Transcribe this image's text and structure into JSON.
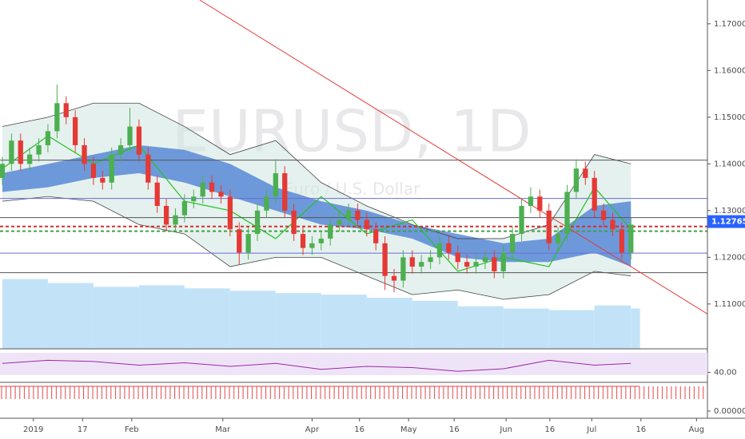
{
  "chart_data": {
    "type": "candlestick",
    "watermark": "EURUSD, 1D",
    "subtitle": "Euro / U.S. Dollar",
    "xlim": [
      -0.26,
      77.4
    ],
    "ylim": [
      1.1004,
      1.1751
    ],
    "xticks": [
      {
        "value": 3.4,
        "label": "2019"
      },
      {
        "value": 8.8,
        "label": "17"
      },
      {
        "value": 14.2,
        "label": "Feb"
      },
      {
        "value": 24.2,
        "label": "Mar"
      },
      {
        "value": 34.0,
        "label": "Apr"
      },
      {
        "value": 39.2,
        "label": "16"
      },
      {
        "value": 44.6,
        "label": "May"
      },
      {
        "value": 49.6,
        "label": "16"
      },
      {
        "value": 55.3,
        "label": "Jun"
      },
      {
        "value": 60.1,
        "label": "16"
      },
      {
        "value": 64.7,
        "label": "Jul"
      },
      {
        "value": 70.1,
        "label": "16"
      },
      {
        "value": 76.2,
        "label": "Aug"
      }
    ],
    "yticks": [
      {
        "value": 1.17,
        "label": "1.17000"
      },
      {
        "value": 1.16,
        "label": "1.16000"
      },
      {
        "value": 1.15,
        "label": "1.15000"
      },
      {
        "value": 1.14,
        "label": "1.14000"
      },
      {
        "value": 1.13,
        "label": "1.13000"
      },
      {
        "value": 1.12,
        "label": "1.12000"
      },
      {
        "value": 1.11,
        "label": "1.11000"
      }
    ],
    "up_color": "#4caf50",
    "down_color": "#e53935",
    "open": [
      1.137,
      1.14,
      1.145,
      1.14,
      1.142,
      1.144,
      1.147,
      1.153,
      1.15,
      1.144,
      1.14,
      1.137,
      1.136,
      1.142,
      1.144,
      1.148,
      1.142,
      1.136,
      1.131,
      1.127,
      1.129,
      1.132,
      1.133,
      1.136,
      1.134,
      1.133,
      1.126,
      1.121,
      1.125,
      1.13,
      1.133,
      1.138,
      1.13,
      1.125,
      1.122,
      1.123,
      1.124,
      1.127,
      1.128,
      1.13,
      1.128,
      1.126,
      1.123,
      1.116,
      1.115,
      1.12,
      1.118,
      1.119,
      1.12,
      1.123,
      1.121,
      1.119,
      1.118,
      1.119,
      1.12,
      1.117,
      1.121,
      1.125,
      1.131,
      1.133,
      1.13,
      1.123,
      1.125,
      1.134,
      1.139,
      1.137,
      1.13,
      1.128,
      1.126,
      1.121
    ],
    "high": [
      1.1415,
      1.1465,
      1.1465,
      1.1435,
      1.1455,
      1.1485,
      1.157,
      1.1545,
      1.1515,
      1.1455,
      1.1415,
      1.1385,
      1.1435,
      1.1455,
      1.152,
      1.1495,
      1.1435,
      1.1375,
      1.1325,
      1.1305,
      1.1335,
      1.1345,
      1.1375,
      1.1375,
      1.1355,
      1.1345,
      1.1275,
      1.1265,
      1.1315,
      1.1345,
      1.141,
      1.1395,
      1.1315,
      1.1265,
      1.1245,
      1.1255,
      1.1285,
      1.1295,
      1.1315,
      1.1315,
      1.1295,
      1.1275,
      1.1245,
      1.1175,
      1.1215,
      1.1215,
      1.1205,
      1.1215,
      1.1245,
      1.1245,
      1.1225,
      1.1205,
      1.1205,
      1.1215,
      1.1215,
      1.1225,
      1.1265,
      1.1325,
      1.135,
      1.1345,
      1.1315,
      1.1265,
      1.1355,
      1.141,
      1.1405,
      1.1385,
      1.1315,
      1.1295,
      1.1275,
      1.1285
    ],
    "low": [
      1.1355,
      1.1385,
      1.1385,
      1.1385,
      1.1405,
      1.1425,
      1.1455,
      1.1485,
      1.1425,
      1.1385,
      1.1355,
      1.1345,
      1.1345,
      1.1405,
      1.1425,
      1.1405,
      1.1345,
      1.1295,
      1.1255,
      1.1255,
      1.1275,
      1.1305,
      1.1315,
      1.1325,
      1.1315,
      1.1245,
      1.1185,
      1.1195,
      1.1235,
      1.1285,
      1.1315,
      1.1285,
      1.1235,
      1.1205,
      1.1205,
      1.1215,
      1.1225,
      1.1255,
      1.1265,
      1.1265,
      1.1245,
      1.1215,
      1.113,
      1.1125,
      1.1135,
      1.1165,
      1.1165,
      1.1175,
      1.1185,
      1.1195,
      1.1175,
      1.1165,
      1.1165,
      1.1175,
      1.1155,
      1.1155,
      1.1195,
      1.1235,
      1.1295,
      1.1285,
      1.1215,
      1.1215,
      1.1235,
      1.1325,
      1.1355,
      1.1285,
      1.1265,
      1.1245,
      1.1195,
      1.1195
    ],
    "close": [
      1.14,
      1.145,
      1.14,
      1.142,
      1.144,
      1.147,
      1.153,
      1.15,
      1.144,
      1.14,
      1.137,
      1.136,
      1.142,
      1.144,
      1.148,
      1.142,
      1.136,
      1.131,
      1.127,
      1.129,
      1.132,
      1.133,
      1.136,
      1.134,
      1.133,
      1.126,
      1.121,
      1.125,
      1.13,
      1.133,
      1.138,
      1.13,
      1.125,
      1.122,
      1.123,
      1.124,
      1.127,
      1.128,
      1.13,
      1.128,
      1.126,
      1.123,
      1.116,
      1.115,
      1.12,
      1.118,
      1.119,
      1.12,
      1.123,
      1.121,
      1.119,
      1.118,
      1.119,
      1.12,
      1.117,
      1.121,
      1.125,
      1.131,
      1.133,
      1.13,
      1.123,
      1.125,
      1.134,
      1.139,
      1.137,
      1.13,
      1.128,
      1.126,
      1.121,
      1.127
    ],
    "bands": {
      "x": [
        0,
        5,
        10,
        15,
        20,
        25,
        30,
        35,
        40,
        45,
        50,
        55,
        60,
        65,
        69
      ],
      "bb_upper": [
        1.148,
        1.15,
        1.153,
        1.153,
        1.148,
        1.142,
        1.145,
        1.136,
        1.131,
        1.127,
        1.124,
        1.124,
        1.127,
        1.142,
        1.14
      ],
      "bb_lower": [
        1.132,
        1.133,
        1.132,
        1.127,
        1.125,
        1.118,
        1.12,
        1.12,
        1.116,
        1.112,
        1.113,
        1.111,
        1.112,
        1.117,
        1.116
      ],
      "cloud_upper": [
        1.138,
        1.14,
        1.142,
        1.144,
        1.143,
        1.14,
        1.135,
        1.132,
        1.13,
        1.127,
        1.125,
        1.123,
        1.124,
        1.131,
        1.132
      ],
      "cloud_lower": [
        1.134,
        1.135,
        1.137,
        1.138,
        1.136,
        1.133,
        1.13,
        1.127,
        1.126,
        1.124,
        1.12,
        1.119,
        1.119,
        1.121,
        1.118
      ],
      "ma_fast": [
        1.139,
        1.146,
        1.14,
        1.144,
        1.132,
        1.13,
        1.124,
        1.133,
        1.125,
        1.128,
        1.117,
        1.12,
        1.118,
        1.135,
        1.126
      ],
      "volume": [
        90,
        85,
        80,
        82,
        78,
        75,
        72,
        70,
        66,
        62,
        55,
        52,
        50,
        56,
        52
      ],
      "rsi": [
        55,
        60,
        58,
        52,
        56,
        50,
        55,
        45,
        50,
        48,
        42,
        46,
        60,
        52,
        55
      ]
    },
    "volume_max": 100,
    "rsi_ylim": [
      25,
      75
    ],
    "rsi_yticks": [
      {
        "value": 40,
        "label": "40.00"
      }
    ],
    "osc_yticks": [
      {
        "value": 0,
        "label": "0.00000"
      }
    ],
    "levels": [
      {
        "value": 1.1408,
        "color": "#555555"
      },
      {
        "value": 1.1326,
        "color": "#6b6bd6"
      },
      {
        "value": 1.1285,
        "color": "#555555"
      },
      {
        "value": 1.1266,
        "color": "#d32f2f",
        "dashed": true
      },
      {
        "value": 1.1256,
        "color": "#43a047",
        "dashed": true
      },
      {
        "value": 1.1209,
        "color": "#6b6bd6"
      },
      {
        "value": 1.1167,
        "color": "#555555"
      }
    ],
    "trendline": {
      "x": [
        21.67,
        77.37
      ],
      "y": [
        1.1751,
        1.1079
      ],
      "color": "#e53935"
    },
    "last_price": {
      "value": 1.12765,
      "label": "1.12765",
      "color": "#2962ff"
    }
  }
}
